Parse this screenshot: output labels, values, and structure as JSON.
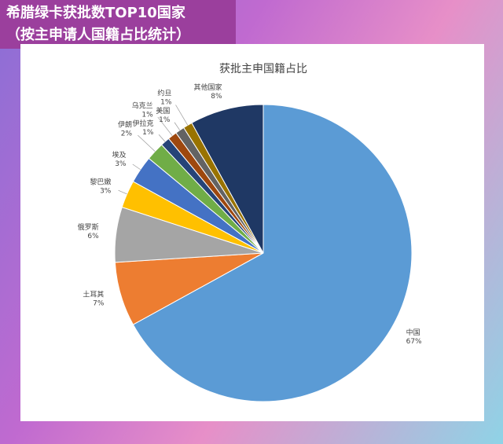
{
  "banner": {
    "title": "希腊绿卡获批数TOP10国家",
    "subtitle": "（按主申请人国籍占比统计）"
  },
  "chart_data": {
    "type": "pie",
    "title": "获批主申国籍占比",
    "categories": [
      "中国",
      "土耳其",
      "俄罗斯",
      "黎巴嫩",
      "埃及",
      "伊朗",
      "伊拉克",
      "乌克兰",
      "美国",
      "约旦",
      "其他国家"
    ],
    "values": [
      67,
      7,
      6,
      3,
      3,
      2,
      1,
      1,
      1,
      1,
      8
    ],
    "value_labels": [
      "67%",
      "7%",
      "6%",
      "3%",
      "3%",
      "2%",
      "1%",
      "1%",
      "1%",
      "1%",
      "8%"
    ],
    "colors": [
      "#5b9bd5",
      "#ed7d31",
      "#a5a5a5",
      "#ffc000",
      "#4472c4",
      "#70ad47",
      "#264478",
      "#9e480e",
      "#636363",
      "#997300",
      "#1f3864"
    ]
  }
}
